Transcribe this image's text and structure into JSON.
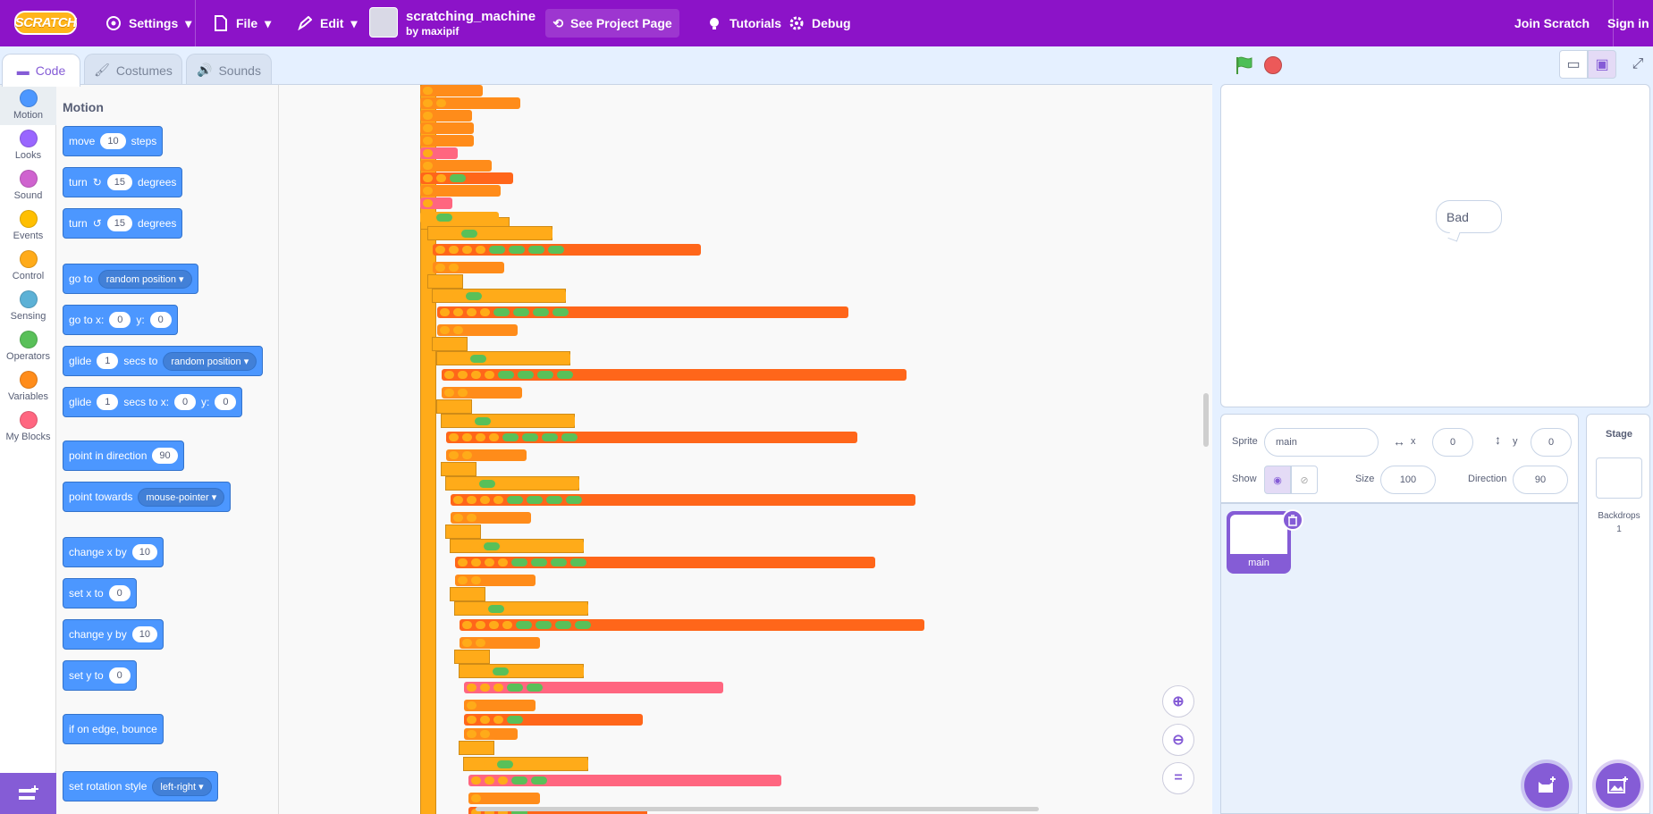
{
  "menubar": {
    "logo": "SCRATCH",
    "settings": "Settings",
    "file": "File",
    "edit": "Edit",
    "project_title": "scratching_machine",
    "project_by": "by maxipif",
    "see_project": "See Project Page",
    "tutorials": "Tutorials",
    "debug": "Debug",
    "join": "Join Scratch",
    "signin": "Sign in"
  },
  "tabs": [
    {
      "label": "Code"
    },
    {
      "label": "Costumes"
    },
    {
      "label": "Sounds"
    }
  ],
  "categories": [
    {
      "label": "Motion",
      "color": "#4c97ff"
    },
    {
      "label": "Looks",
      "color": "#9966ff"
    },
    {
      "label": "Sound",
      "color": "#cf63cf"
    },
    {
      "label": "Events",
      "color": "#ffbf00"
    },
    {
      "label": "Control",
      "color": "#ffab19"
    },
    {
      "label": "Sensing",
      "color": "#5cb1d6"
    },
    {
      "label": "Operators",
      "color": "#59c059"
    },
    {
      "label": "Variables",
      "color": "#ff8c1a"
    },
    {
      "label": "My Blocks",
      "color": "#ff6680"
    }
  ],
  "palette": {
    "heading": "Motion",
    "blocks": {
      "move": {
        "a": "move",
        "v": "10",
        "b": "steps"
      },
      "turn_right": {
        "a": "turn",
        "v": "15",
        "b": "degrees"
      },
      "turn_left": {
        "a": "turn",
        "v": "15",
        "b": "degrees"
      },
      "goto": {
        "a": "go to",
        "v": "random position"
      },
      "gotoxy": {
        "a": "go to x:",
        "x": "0",
        "y_label": "y:",
        "y": "0"
      },
      "glide_to": {
        "a": "glide",
        "v": "1",
        "b": "secs to",
        "c": "random position"
      },
      "glide_xy": {
        "a": "glide",
        "v": "1",
        "b": "secs to x:",
        "x": "0",
        "y_label": "y:",
        "y": "0"
      },
      "point_dir": {
        "a": "point in direction",
        "v": "90"
      },
      "point_towards": {
        "a": "point towards",
        "v": "mouse-pointer"
      },
      "change_x": {
        "a": "change x by",
        "v": "10"
      },
      "set_x": {
        "a": "set x to",
        "v": "0"
      },
      "change_y": {
        "a": "change y by",
        "v": "10"
      },
      "set_y": {
        "a": "set y to",
        "v": "0"
      },
      "bounce": {
        "a": "if on edge, bounce"
      },
      "rotation": {
        "a": "set rotation style",
        "v": "left-right"
      }
    }
  },
  "stage": {
    "speech": "Bad"
  },
  "sprite_info": {
    "sprite_label": "Sprite",
    "sprite_name": "main",
    "x_label": "x",
    "x": "0",
    "y_label": "y",
    "y": "0",
    "show_label": "Show",
    "size_label": "Size",
    "size": "100",
    "direction_label": "Direction",
    "direction": "90"
  },
  "sprites": [
    {
      "name": "main"
    }
  ],
  "stage_pane": {
    "title": "Stage",
    "backdrops_label": "Backdrops",
    "backdrops_count": "1"
  },
  "colors": {
    "menubar": "#8c13c8",
    "accent": "#855cd6",
    "motion": "#4c97ff",
    "control": "#ffab19",
    "variables": "#ff8c1a",
    "operators": "#59c059",
    "lists": "#ff661a",
    "myblocks": "#ff6680"
  }
}
